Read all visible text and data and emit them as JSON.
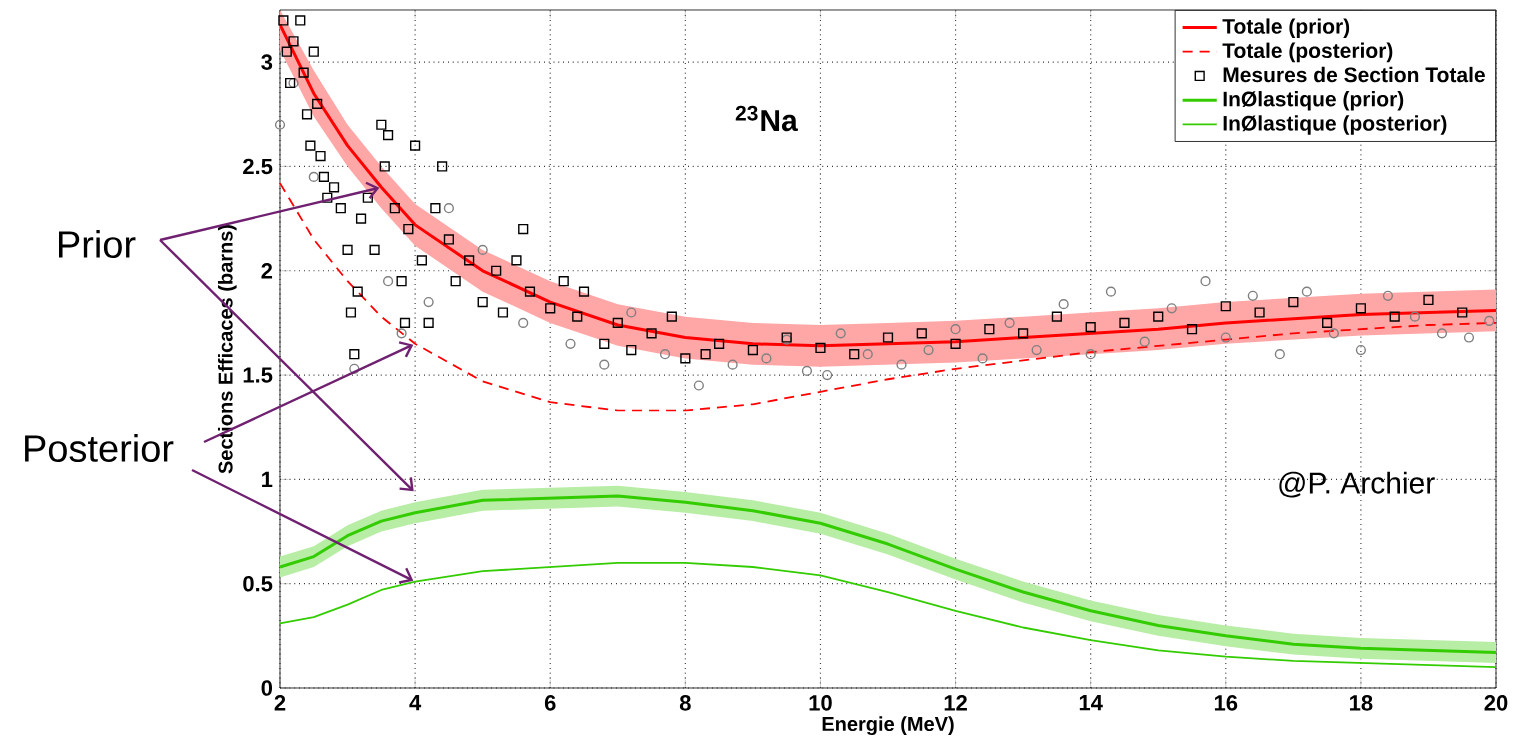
{
  "chart_data": {
    "type": "line",
    "xlabel": "Energie (MeV)",
    "ylabel": "Sections Efficaces (barns)",
    "annotations": [
      {
        "text": "Prior",
        "x": 3.5,
        "y": 2.4
      },
      {
        "text": "Posterior",
        "x": 4,
        "y": 1.65
      },
      "@P. Archier",
      "$^{23}$Na"
    ],
    "x": [
      2,
      2.5,
      3,
      3.5,
      4,
      5,
      6,
      7,
      8,
      9,
      10,
      11,
      12,
      13,
      14,
      15,
      16,
      17,
      18,
      19,
      20
    ],
    "series": [
      {
        "type": "scatter",
        "color": "#808080",
        "marker": "circle",
        "x": [
          2.0,
          2.2,
          2.5,
          3.1,
          3.6,
          3.8,
          4.2,
          4.5,
          5.0,
          5.6,
          6.3,
          6.8,
          7.2,
          7.7,
          8.2,
          8.7,
          9.2,
          9.5,
          9.8,
          10.1,
          10.3,
          10.7,
          11.2,
          11.6,
          12.0,
          12.4,
          12.8,
          13.2,
          13.6,
          14.0,
          14.3,
          14.8,
          15.2,
          15.7,
          16.0,
          16.4,
          16.8,
          17.2,
          17.6,
          18.0,
          18.4,
          18.8,
          19.2,
          19.6,
          19.9
        ],
        "values": [
          2.7,
          2.9,
          2.45,
          1.53,
          1.95,
          1.7,
          1.85,
          2.3,
          2.1,
          1.75,
          1.65,
          1.55,
          1.8,
          1.6,
          1.45,
          1.55,
          1.58,
          1.67,
          1.52,
          1.5,
          1.7,
          1.6,
          1.55,
          1.62,
          1.72,
          1.58,
          1.75,
          1.62,
          1.84,
          1.6,
          1.9,
          1.66,
          1.82,
          1.95,
          1.68,
          1.88,
          1.6,
          1.9,
          1.7,
          1.62,
          1.88,
          1.78,
          1.7,
          1.68,
          1.76
        ]
      },
      {
        "name": "Totale (prior)",
        "color": "#ff0000",
        "line_style": "solid",
        "values": [
          3.18,
          2.85,
          2.6,
          2.4,
          2.22,
          2.0,
          1.85,
          1.74,
          1.68,
          1.65,
          1.64,
          1.65,
          1.66,
          1.68,
          1.7,
          1.72,
          1.75,
          1.77,
          1.79,
          1.8,
          1.81
        ],
        "lower": [
          3.06,
          2.74,
          2.5,
          2.3,
          2.12,
          1.9,
          1.75,
          1.64,
          1.58,
          1.55,
          1.54,
          1.55,
          1.56,
          1.58,
          1.6,
          1.62,
          1.65,
          1.67,
          1.69,
          1.7,
          1.71
        ],
        "upper": [
          3.25,
          2.96,
          2.7,
          2.5,
          2.32,
          2.1,
          1.95,
          1.84,
          1.78,
          1.75,
          1.74,
          1.75,
          1.76,
          1.78,
          1.8,
          1.82,
          1.85,
          1.87,
          1.89,
          1.9,
          1.91
        ]
      },
      {
        "name": "Totale (posterior)",
        "color": "#ff0000",
        "line_style": "dashed",
        "values": [
          2.42,
          2.15,
          1.95,
          1.78,
          1.65,
          1.47,
          1.37,
          1.33,
          1.33,
          1.36,
          1.42,
          1.48,
          1.53,
          1.57,
          1.61,
          1.64,
          1.67,
          1.7,
          1.72,
          1.74,
          1.75
        ]
      },
      {
        "name": "Mesures de Section Totale",
        "type": "scatter",
        "color": "#000000",
        "marker": "square",
        "x": [
          2.05,
          2.1,
          2.15,
          2.2,
          2.3,
          2.35,
          2.4,
          2.45,
          2.5,
          2.55,
          2.6,
          2.65,
          2.7,
          2.8,
          2.9,
          3.0,
          3.05,
          3.1,
          3.15,
          3.2,
          3.3,
          3.4,
          3.5,
          3.55,
          3.6,
          3.7,
          3.8,
          3.85,
          3.9,
          4.0,
          4.1,
          4.2,
          4.3,
          4.4,
          4.5,
          4.6,
          4.8,
          5.0,
          5.2,
          5.3,
          5.5,
          5.6,
          5.7,
          6.0,
          6.2,
          6.4,
          6.5,
          6.8,
          7.0,
          7.2,
          7.5,
          7.8,
          8.0,
          8.3,
          8.5,
          9.0,
          9.5,
          10.0,
          10.5,
          11.0,
          11.5,
          12.0,
          12.5,
          13.0,
          13.5,
          14.0,
          14.5,
          15.0,
          15.5,
          16.0,
          16.5,
          17.0,
          17.5,
          18.0,
          18.5,
          19.0,
          19.5
        ],
        "values": [
          3.2,
          3.05,
          2.9,
          3.1,
          3.2,
          2.95,
          2.75,
          2.6,
          3.05,
          2.8,
          2.55,
          2.45,
          2.35,
          2.4,
          2.3,
          2.1,
          1.8,
          1.6,
          1.9,
          2.25,
          2.35,
          2.1,
          2.7,
          2.5,
          2.65,
          2.3,
          1.95,
          1.75,
          2.2,
          2.6,
          2.05,
          1.75,
          2.3,
          2.5,
          2.15,
          1.95,
          2.05,
          1.85,
          2.0,
          1.8,
          2.05,
          2.2,
          1.9,
          1.82,
          1.95,
          1.78,
          1.9,
          1.65,
          1.75,
          1.62,
          1.7,
          1.78,
          1.58,
          1.6,
          1.65,
          1.62,
          1.68,
          1.63,
          1.6,
          1.68,
          1.7,
          1.65,
          1.72,
          1.7,
          1.78,
          1.73,
          1.75,
          1.78,
          1.72,
          1.83,
          1.8,
          1.85,
          1.75,
          1.82,
          1.78,
          1.86,
          1.8
        ]
      },
      {
        "name": "InØlastique (prior)",
        "color": "#33cc00",
        "line_style": "solid",
        "values": [
          0.58,
          0.63,
          0.73,
          0.8,
          0.84,
          0.9,
          0.91,
          0.92,
          0.89,
          0.85,
          0.79,
          0.69,
          0.57,
          0.46,
          0.37,
          0.3,
          0.25,
          0.21,
          0.19,
          0.18,
          0.17
        ],
        "lower": [
          0.53,
          0.58,
          0.68,
          0.75,
          0.79,
          0.85,
          0.86,
          0.87,
          0.84,
          0.8,
          0.74,
          0.64,
          0.52,
          0.41,
          0.32,
          0.25,
          0.2,
          0.16,
          0.14,
          0.13,
          0.12
        ],
        "upper": [
          0.63,
          0.68,
          0.78,
          0.85,
          0.89,
          0.95,
          0.96,
          0.97,
          0.94,
          0.9,
          0.84,
          0.74,
          0.62,
          0.51,
          0.42,
          0.35,
          0.3,
          0.26,
          0.24,
          0.23,
          0.22
        ]
      },
      {
        "name": "InØlastique (posterior)",
        "color": "#33cc00",
        "line_style": "solid",
        "values": [
          0.31,
          0.34,
          0.4,
          0.47,
          0.51,
          0.56,
          0.58,
          0.6,
          0.6,
          0.58,
          0.54,
          0.46,
          0.37,
          0.29,
          0.23,
          0.18,
          0.15,
          0.13,
          0.12,
          0.11,
          0.1
        ]
      }
    ],
    "xlim": [
      2,
      20
    ],
    "ylim": [
      0,
      3.25
    ],
    "xticks": [
      2,
      4,
      6,
      8,
      10,
      12,
      14,
      16,
      18,
      20
    ],
    "yticks": [
      0,
      0.5,
      1,
      1.5,
      2,
      2.5,
      3
    ],
    "grid": true,
    "legend": "top right"
  }
}
